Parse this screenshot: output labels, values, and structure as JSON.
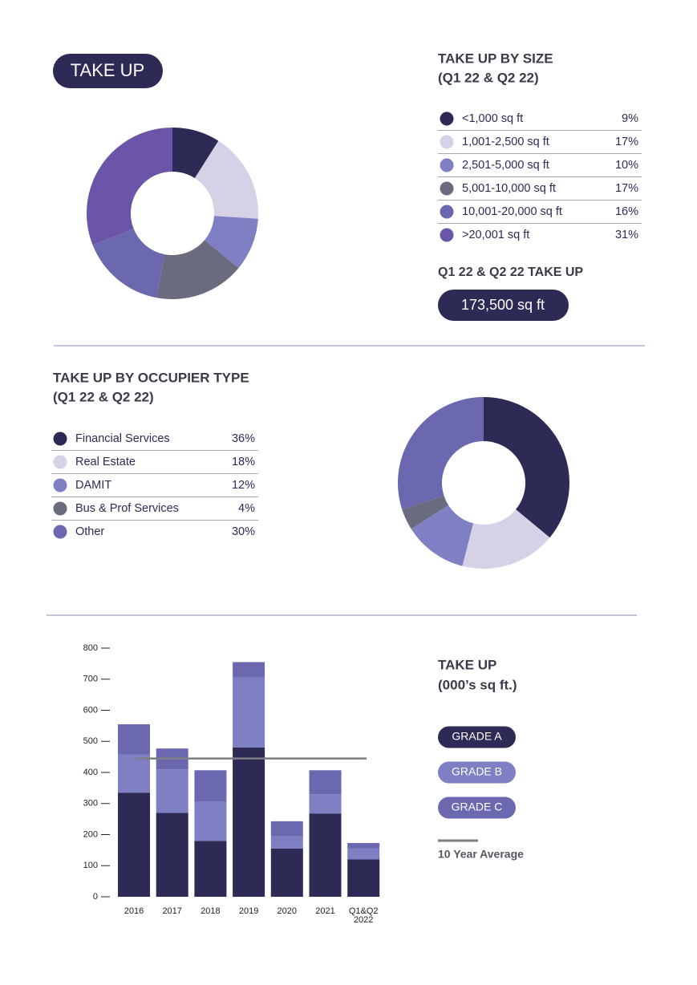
{
  "header": {
    "title": "TAKE UP"
  },
  "total": {
    "label": "Q1 22 & Q2 22 TAKE UP",
    "value": "173,500 sq ft"
  },
  "chart_data": [
    {
      "type": "pie",
      "title": "TAKE UP BY SIZE",
      "subtitle": "(Q1 22 & Q2 22)",
      "categories": [
        "<1,000 sq ft",
        "1,001-2,500 sq ft",
        "2,501-5,000 sq ft",
        "5,001-10,000 sq ft",
        "10,001-20,000 sq ft",
        ">20,001 sq ft"
      ],
      "values": [
        9,
        17,
        10,
        17,
        16,
        31
      ],
      "value_labels": [
        "9%",
        "17%",
        "10%",
        "17%",
        "16%",
        "31%"
      ],
      "colors": [
        "#2e2a56",
        "#d5d2e8",
        "#7f7fc4",
        "#6b6b80",
        "#6b68b0",
        "#6a55a8"
      ]
    },
    {
      "type": "pie",
      "title": "TAKE UP BY OCCUPIER TYPE",
      "subtitle": "(Q1 22 & Q2 22)",
      "categories": [
        "Financial Services",
        "Real Estate",
        "DAMIT",
        "Bus & Prof Services",
        "Other"
      ],
      "values": [
        36,
        18,
        12,
        4,
        30
      ],
      "value_labels": [
        "36%",
        "18%",
        "12%",
        "4%",
        "30%"
      ],
      "colors": [
        "#2e2a56",
        "#d5d2e8",
        "#7f7fc4",
        "#6b6b80",
        "#6b68b0"
      ]
    },
    {
      "type": "bar",
      "stacked": true,
      "title": "TAKE UP",
      "subtitle": "(000’s sq ft.)",
      "categories": [
        "2016",
        "2017",
        "2018",
        "2019",
        "2020",
        "2021",
        "Q1&Q2 2022"
      ],
      "series": [
        {
          "name": "GRADE A",
          "color": "#2e2a56",
          "values": [
            335,
            270,
            180,
            480,
            155,
            268,
            120
          ]
        },
        {
          "name": "GRADE B",
          "color": "#7f7fc4",
          "values": [
            123,
            140,
            125,
            225,
            40,
            62,
            35
          ]
        },
        {
          "name": "GRADE C",
          "color": "#6b68b0",
          "values": [
            97,
            67,
            102,
            50,
            48,
            77,
            18
          ]
        }
      ],
      "average": {
        "name": "10 Year Average",
        "value": 445,
        "color": "#7d7d85"
      },
      "ylim": [
        0,
        800
      ],
      "yticks": [
        0,
        100,
        200,
        300,
        400,
        500,
        600,
        700,
        800
      ]
    }
  ]
}
